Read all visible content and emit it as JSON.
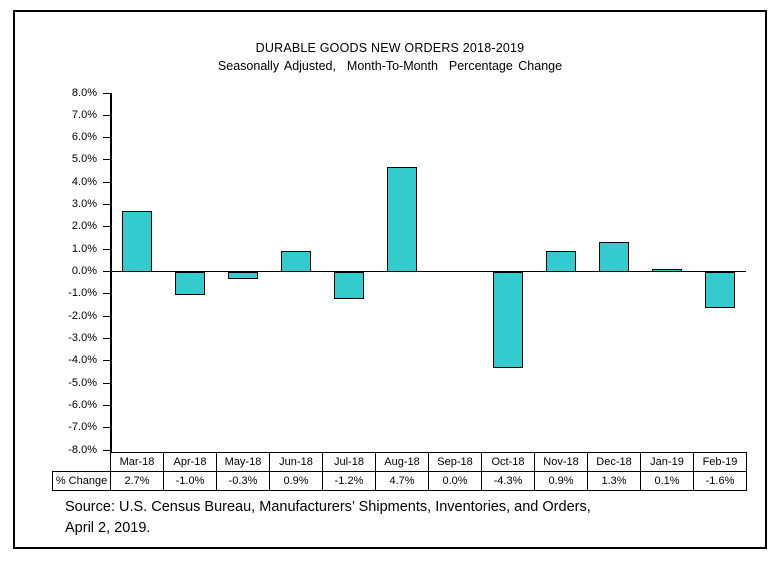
{
  "window": {
    "background": "#ffffff",
    "frame_border_color": "#000000"
  },
  "chart": {
    "title": "DURABLE GOODS NEW ORDERS 2018-2019",
    "subtitle": "Seasonally Adjusted,  Month-To-Month  Percentage Change"
  },
  "chart_data": {
    "type": "bar",
    "title": "DURABLE GOODS NEW ORDERS 2018-2019",
    "subtitle": "Seasonally Adjusted, Month-To-Month Percentage Change",
    "categories": [
      "Mar-18",
      "Apr-18",
      "May-18",
      "Jun-18",
      "Jul-18",
      "Aug-18",
      "Sep-18",
      "Oct-18",
      "Nov-18",
      "Dec-18",
      "Jan-19",
      "Feb-19"
    ],
    "values": [
      2.7,
      -1.0,
      -0.3,
      0.9,
      -1.2,
      4.7,
      0.0,
      -4.3,
      0.9,
      1.3,
      0.1,
      -1.6
    ],
    "formatted_values": [
      "2.7%",
      "-1.0%",
      "-0.3%",
      "0.9%",
      "-1.2%",
      "4.7%",
      "0.0%",
      "-4.3%",
      "0.9%",
      "1.3%",
      "0.1%",
      "-1.6%"
    ],
    "row_label": "% Change",
    "xlabel": "",
    "ylabel": "",
    "ylim": [
      -8.0,
      8.0
    ],
    "y_tick_step": 1.0,
    "y_tick_labels": [
      "8.0%",
      "7.0%",
      "6.0%",
      "5.0%",
      "4.0%",
      "3.0%",
      "2.0%",
      "1.0%",
      "0.0%",
      "-1.0%",
      "-2.0%",
      "-3.0%",
      "-4.0%",
      "-5.0%",
      "-6.0%",
      "-7.0%",
      "-8.0%"
    ],
    "grid": false,
    "legend": false,
    "bar_color": "#33CBCE",
    "bar_border_color": "#000000"
  },
  "source": {
    "line1": "Source: U.S. Census Bureau, Manufacturers’ Shipments, Inventories, and Orders,",
    "line2": "April 2, 2019."
  }
}
